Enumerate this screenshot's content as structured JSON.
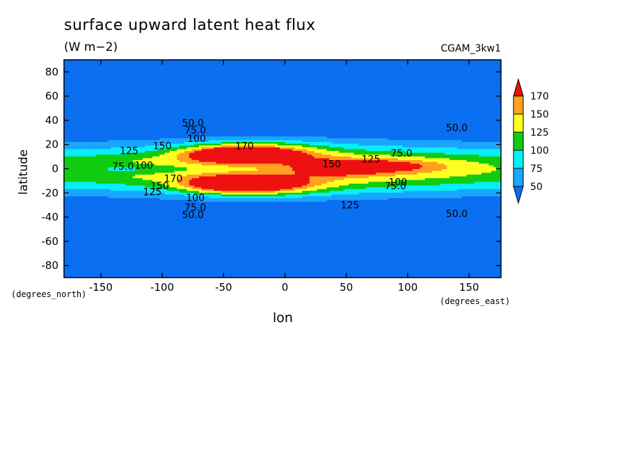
{
  "chart_data": {
    "type": "contour",
    "title": "surface upward latent heat flux",
    "units": "(W m−2)",
    "run_id": "CGAM_3kw1",
    "xlabel": "lon",
    "ylabel": "latitude",
    "xunits": "(degrees_east)",
    "yunits": "(degrees_north)",
    "xlim": [
      -180,
      176
    ],
    "ylim": [
      -90,
      90
    ],
    "xticks": [
      -150,
      -100,
      -50,
      0,
      50,
      100,
      150
    ],
    "yticks": [
      -80,
      -60,
      -40,
      -20,
      0,
      20,
      40,
      60,
      80
    ],
    "levels": [
      50,
      75,
      100,
      125,
      150,
      170
    ],
    "colors": [
      "#0a6ff0",
      "#18a6ff",
      "#08eef8",
      "#11cc11",
      "#ffff22",
      "#ffa020",
      "#ee1111"
    ],
    "colorbar": {
      "labels": [
        "50",
        "75",
        "100",
        "125",
        "150",
        "170"
      ],
      "extend": "both"
    },
    "contour_labels": [
      {
        "text": "50.0",
        "lon": -75,
        "lat": 38
      },
      {
        "text": "75.0",
        "lon": -73,
        "lat": 32
      },
      {
        "text": "100",
        "lon": -72,
        "lat": 25
      },
      {
        "text": "50.0",
        "lon": 140,
        "lat": 34
      },
      {
        "text": "75.0",
        "lon": 95,
        "lat": 13
      },
      {
        "text": "125",
        "lon": 70,
        "lat": 8
      },
      {
        "text": "150",
        "lon": 38,
        "lat": 4
      },
      {
        "text": "170",
        "lon": -33,
        "lat": 19
      },
      {
        "text": "125",
        "lon": -127,
        "lat": 15
      },
      {
        "text": "150",
        "lon": -100,
        "lat": 19
      },
      {
        "text": "75.0",
        "lon": -132,
        "lat": 2
      },
      {
        "text": "100",
        "lon": -115,
        "lat": 3
      },
      {
        "text": "170",
        "lon": -91,
        "lat": -8
      },
      {
        "text": "150",
        "lon": -102,
        "lat": -14
      },
      {
        "text": "125",
        "lon": -108,
        "lat": -19
      },
      {
        "text": "100",
        "lon": -73,
        "lat": -24
      },
      {
        "text": "75.0",
        "lon": -73,
        "lat": -32
      },
      {
        "text": "50.0",
        "lon": -75,
        "lat": -38
      },
      {
        "text": "100",
        "lon": 92,
        "lat": -11
      },
      {
        "text": "75.0",
        "lon": 90,
        "lat": -14
      },
      {
        "text": "125",
        "lon": 53,
        "lat": -30
      },
      {
        "text": "50.0",
        "lon": 140,
        "lat": -37
      }
    ]
  }
}
